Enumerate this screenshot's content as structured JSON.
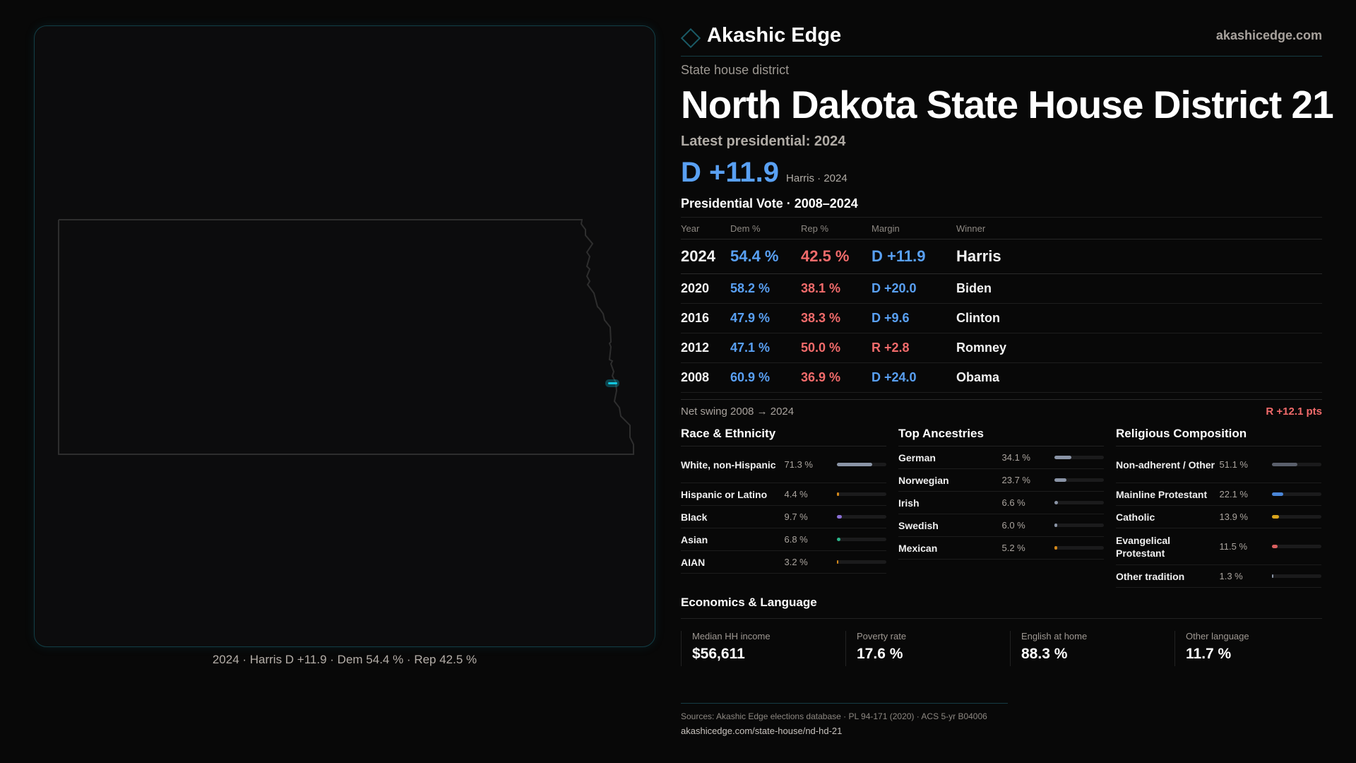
{
  "brand": {
    "name": "Akashic Edge",
    "site": "akashicedge.com",
    "accent": "#1a5a66"
  },
  "district": {
    "kind": "State house district",
    "title": "North Dakota State House District 21"
  },
  "latest": {
    "label": "Latest presidential: 2024",
    "margin": "D +11.9",
    "sub": "Harris · 2024"
  },
  "map": {
    "caption": "2024 · Harris D +11.9 · Dem 54.4 % · Rep 42.5 %",
    "highlight_color": "#12c8e0"
  },
  "votes": {
    "title": "Presidential Vote · 2008–2024",
    "headers": [
      "Year",
      "Dem %",
      "Rep %",
      "Margin",
      "Winner"
    ],
    "rows": [
      {
        "year": "2024",
        "dem": "54.4 %",
        "rep": "42.5 %",
        "margin": "D +11.9",
        "party": "D",
        "winner": "Harris"
      },
      {
        "year": "2020",
        "dem": "58.2 %",
        "rep": "38.1 %",
        "margin": "D +20.0",
        "party": "D",
        "winner": "Biden"
      },
      {
        "year": "2016",
        "dem": "47.9 %",
        "rep": "38.3 %",
        "margin": "D +9.6",
        "party": "D",
        "winner": "Clinton"
      },
      {
        "year": "2012",
        "dem": "47.1 %",
        "rep": "50.0 %",
        "margin": "R +2.8",
        "party": "R",
        "winner": "Romney"
      },
      {
        "year": "2008",
        "dem": "60.9 %",
        "rep": "36.9 %",
        "margin": "D +24.0",
        "party": "D",
        "winner": "Obama"
      }
    ],
    "swing_label": "Net swing 2008 → 2024",
    "swing_value": "R +12.1 pts"
  },
  "sections": [
    {
      "title": "Race & Ethnicity",
      "items": [
        {
          "label": "White, non-Hispanic",
          "value": "71.3 %",
          "pct": 71.3,
          "color": "#8a94a6"
        },
        {
          "label": "Hispanic or Latino",
          "value": "4.4 %",
          "pct": 4.4,
          "color": "#d4891a"
        },
        {
          "label": "Black",
          "value": "9.7 %",
          "pct": 9.7,
          "color": "#8a6fd6"
        },
        {
          "label": "Asian",
          "value": "6.8 %",
          "pct": 6.8,
          "color": "#2bb58a"
        },
        {
          "label": "AIAN",
          "value": "3.2 %",
          "pct": 3.2,
          "color": "#d4891a"
        }
      ]
    },
    {
      "title": "Top Ancestries",
      "items": [
        {
          "label": "German",
          "value": "34.1 %",
          "pct": 34.1,
          "color": "#8a94a6"
        },
        {
          "label": "Norwegian",
          "value": "23.7 %",
          "pct": 23.7,
          "color": "#8a94a6"
        },
        {
          "label": "Irish",
          "value": "6.6 %",
          "pct": 6.6,
          "color": "#8a94a6"
        },
        {
          "label": "Swedish",
          "value": "6.0 %",
          "pct": 6.0,
          "color": "#8a94a6"
        },
        {
          "label": "Mexican",
          "value": "5.2 %",
          "pct": 5.2,
          "color": "#d4891a"
        }
      ]
    },
    {
      "title": "Religious Composition",
      "items": [
        {
          "label": "Non-adherent / Other",
          "value": "51.1 %",
          "pct": 51.1,
          "color": "#5a5f6b"
        },
        {
          "label": "Mainline Protestant",
          "value": "22.1 %",
          "pct": 22.1,
          "color": "#4a86d8"
        },
        {
          "label": "Catholic",
          "value": "13.9 %",
          "pct": 13.9,
          "color": "#d9a41c"
        },
        {
          "label": "Evangelical Protestant",
          "value": "11.5 %",
          "pct": 11.5,
          "color": "#d95f5f"
        },
        {
          "label": "Other tradition",
          "value": "1.3 %",
          "pct": 1.3,
          "color": "#8a94a6"
        }
      ]
    }
  ],
  "economics": {
    "title": "Economics & Language",
    "stats": [
      {
        "label": "Median HH income",
        "value": "$56,611"
      },
      {
        "label": "Poverty rate",
        "value": "17.6 %"
      },
      {
        "label": "English at home",
        "value": "88.3 %"
      },
      {
        "label": "Other language",
        "value": "11.7 %"
      }
    ]
  },
  "footer": {
    "sources": "Sources: Akashic Edge elections database · PL 94-171 (2020) · ACS 5-yr B04006",
    "url": "akashicedge.com/state-house/nd-hd-21"
  },
  "colors": {
    "dem": "#59a0f3",
    "rep": "#f26b6b"
  }
}
